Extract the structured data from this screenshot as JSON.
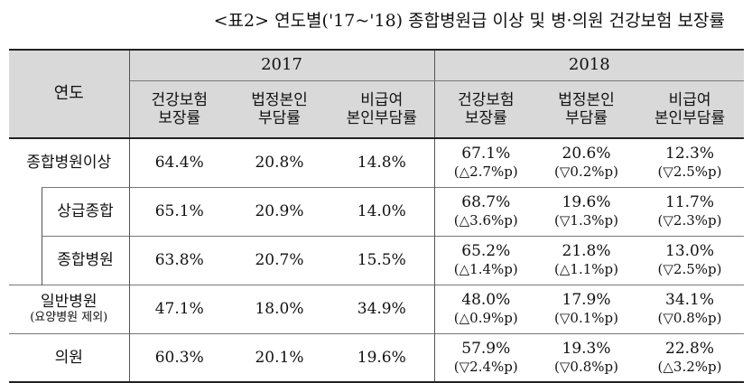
{
  "caption": "<표2> 연도별('17~'18) 종합병원급 이상 및 병·의원 건강보험 보장률",
  "header": {
    "row_label": "연도",
    "years": [
      "2017",
      "2018"
    ],
    "columns_2017": [
      "건강보험\n보장률",
      "법정본인\n부담률",
      "비급여\n본인부담률"
    ],
    "columns_2018": [
      "건강보험\n보장률",
      "법정본인\n부담률",
      "비급여\n본인부담률"
    ]
  },
  "rows": [
    {
      "label": "종합병원이상",
      "sublabel": "",
      "v2017": [
        "64.4%",
        "20.8%",
        "14.8%"
      ],
      "v2018": [
        "67.1%",
        "20.6%",
        "12.3%"
      ],
      "d2018": [
        "(△2.7%p)",
        "(▽0.2%p)",
        "(▽2.5%p)"
      ]
    },
    {
      "label": "상급종합",
      "sublabel": "",
      "v2017": [
        "65.1%",
        "20.9%",
        "14.0%"
      ],
      "v2018": [
        "68.7%",
        "19.6%",
        "11.7%"
      ],
      "d2018": [
        "(△3.6%p)",
        "(▽1.3%p)",
        "(▽2.3%p)"
      ]
    },
    {
      "label": "종합병원",
      "sublabel": "",
      "v2017": [
        "63.8%",
        "20.7%",
        "15.5%"
      ],
      "v2018": [
        "65.2%",
        "21.8%",
        "13.0%"
      ],
      "d2018": [
        "(△1.4%p)",
        "(△1.1%p)",
        "(▽2.5%p)"
      ]
    },
    {
      "label": "일반병원",
      "sublabel": "(요양병원 제외)",
      "v2017": [
        "47.1%",
        "18.0%",
        "34.9%"
      ],
      "v2018": [
        "48.0%",
        "17.9%",
        "34.1%"
      ],
      "d2018": [
        "(△0.9%p)",
        "(▽0.1%p)",
        "(▽0.8%p)"
      ]
    },
    {
      "label": "의원",
      "sublabel": "",
      "v2017": [
        "60.3%",
        "20.1%",
        "19.6%"
      ],
      "v2018": [
        "57.9%",
        "19.3%",
        "22.8%"
      ],
      "d2018": [
        "(▽2.4%p)",
        "(▽0.8%p)",
        "(△3.2%p)"
      ]
    }
  ]
}
